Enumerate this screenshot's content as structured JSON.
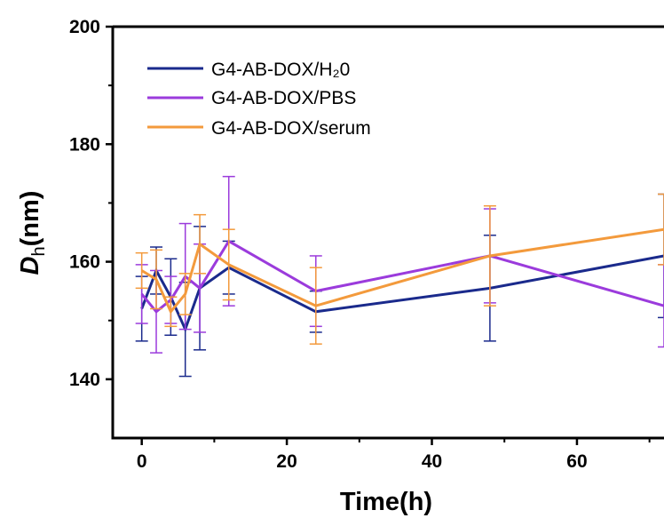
{
  "chart_data": {
    "type": "line",
    "xlabel": "Time(h)",
    "ylabel": {
      "main": "D",
      "sub": "h",
      "unit": "(nm)"
    },
    "xlim": [
      -4,
      72
    ],
    "ylim": [
      130,
      200
    ],
    "x_ticks": [
      0,
      20,
      40,
      60
    ],
    "y_ticks": [
      140,
      160,
      180,
      200
    ],
    "grid": false,
    "legend_position": "top-left",
    "series": [
      {
        "name": "G4-AB-DOX/H₂0",
        "color": "#1a2a8c",
        "x": [
          0,
          2,
          4,
          6,
          8,
          12,
          24,
          48,
          72
        ],
        "y": [
          152,
          158.5,
          154,
          148.5,
          155.5,
          159,
          151.5,
          155.5,
          161
        ],
        "err": [
          5.5,
          4,
          6.5,
          8,
          10.5,
          4.5,
          3.5,
          9,
          10.5
        ]
      },
      {
        "name": "G4-AB-DOX/PBS",
        "color": "#9b3bdc",
        "x": [
          0,
          2,
          4,
          6,
          8,
          12,
          24,
          48,
          72
        ],
        "y": [
          154.5,
          151.5,
          153.5,
          157.5,
          155.5,
          163.5,
          155,
          161,
          152.5
        ],
        "err": [
          5,
          7,
          4,
          9,
          7.5,
          11,
          6,
          8,
          7
        ]
      },
      {
        "name": "G4-AB-DOX/serum",
        "color": "#f39a3c",
        "x": [
          0,
          2,
          4,
          6,
          8,
          12,
          24,
          48,
          72
        ],
        "y": [
          158.5,
          157,
          151.5,
          154.5,
          163,
          159.5,
          152.5,
          161,
          165.5
        ],
        "err": [
          3,
          5,
          2.5,
          3.5,
          5,
          6,
          6.5,
          8.5,
          6
        ]
      }
    ]
  }
}
